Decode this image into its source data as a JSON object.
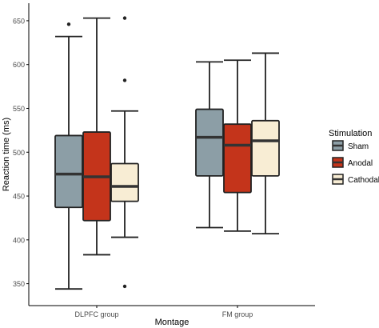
{
  "chart_data": {
    "type": "box",
    "xlabel": "Montage",
    "ylabel": "Reaction time (ms)",
    "ylim": [
      325,
      670
    ],
    "y_ticks": [
      350,
      400,
      450,
      500,
      550,
      600,
      650
    ],
    "categories": [
      "DLPFC group",
      "FM group"
    ],
    "legend": {
      "title": "Stimulation",
      "position": "right",
      "entries": [
        "Sham",
        "Anodal",
        "Cathodal"
      ]
    },
    "colors": {
      "Sham": "#8c9ea6",
      "Anodal": "#c4341b",
      "Cathodal": "#f8edd4"
    },
    "series": [
      {
        "name": "Sham",
        "boxes": [
          {
            "category": "DLPFC group",
            "min": 344,
            "q1": 437,
            "median": 475,
            "q3": 519,
            "max": 632,
            "outliers": [
              646
            ]
          },
          {
            "category": "FM group",
            "min": 414,
            "q1": 473,
            "median": 517,
            "q3": 549,
            "max": 603,
            "outliers": []
          }
        ]
      },
      {
        "name": "Anodal",
        "boxes": [
          {
            "category": "DLPFC group",
            "min": 383,
            "q1": 422,
            "median": 472,
            "q3": 523,
            "max": 653,
            "outliers": []
          },
          {
            "category": "FM group",
            "min": 410,
            "q1": 454,
            "median": 508,
            "q3": 532,
            "max": 605,
            "outliers": []
          }
        ]
      },
      {
        "name": "Cathodal",
        "boxes": [
          {
            "category": "DLPFC group",
            "min": 403,
            "q1": 444,
            "median": 461,
            "q3": 487,
            "max": 547,
            "outliers": [
              653,
              582,
              347
            ]
          },
          {
            "category": "FM group",
            "min": 407,
            "q1": 473,
            "median": 513,
            "q3": 536,
            "max": 613,
            "outliers": []
          }
        ]
      }
    ]
  }
}
